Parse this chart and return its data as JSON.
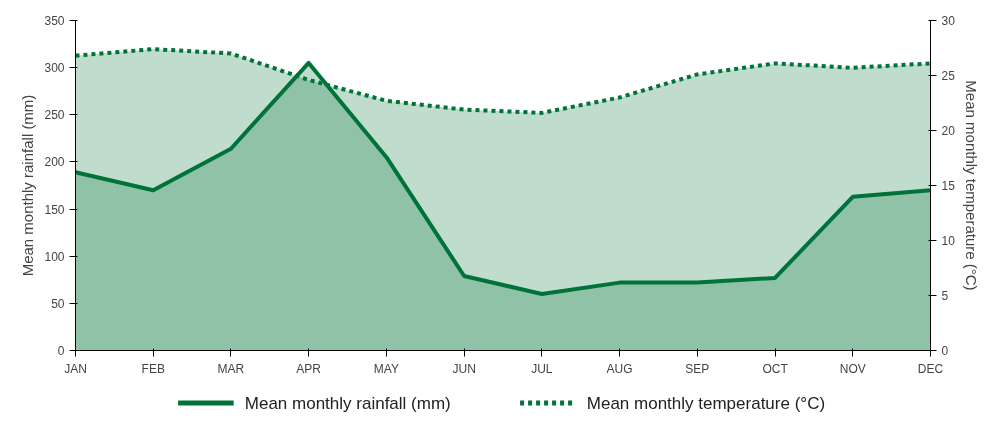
{
  "chart_data": {
    "type": "area",
    "categories": [
      "JAN",
      "FEB",
      "MAR",
      "APR",
      "MAY",
      "JUN",
      "JUL",
      "AUG",
      "SEP",
      "OCT",
      "NOV",
      "DEC"
    ],
    "series": [
      {
        "name": "Mean monthly rainfall (mm)",
        "color": "#007339",
        "line_style": "solid",
        "values": [
          189,
          170,
          214,
          305,
          205,
          79,
          60,
          72,
          72,
          77,
          163,
          170
        ]
      },
      {
        "name": "Mean monthly temperature (°C)",
        "color": "#007339",
        "line_style": "dotted",
        "axis": "y2",
        "values": [
          26.8,
          27.4,
          27.0,
          24.6,
          22.7,
          21.9,
          21.6,
          23.0,
          25.1,
          26.1,
          25.7,
          26.1
        ]
      }
    ],
    "ylabel": "Mean monthly rainfall (mm)",
    "y2label": "Mean monthly temperature (°C)",
    "ylim": [
      0,
      350
    ],
    "yticks": [
      0,
      50,
      100,
      150,
      200,
      250,
      300,
      350
    ],
    "y2lim": [
      0,
      30
    ],
    "y2ticks": [
      0,
      5,
      10,
      15,
      20,
      25,
      30
    ],
    "grid": false,
    "legend": "bottom"
  }
}
